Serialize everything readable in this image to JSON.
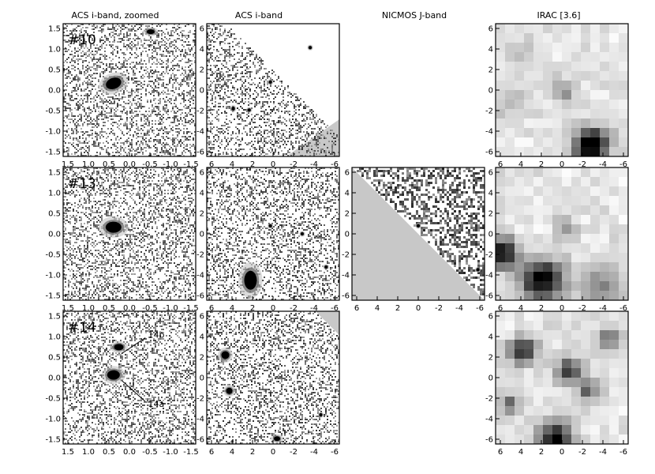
{
  "column_titles": [
    "ACS i-band, zoomed",
    "ACS i-band",
    "NICMOS J-band",
    "IRAC [3.6]"
  ],
  "object_labels": [
    "#10",
    "#13",
    "#14"
  ],
  "annotations": [
    "14b",
    "14a"
  ],
  "zoom_ticks": {
    "x": [
      "1.5",
      "1.0",
      "0.5",
      "0.0",
      "-0.5",
      "-1.0",
      "-1.5"
    ],
    "y": [
      "1.5",
      "1.0",
      "0.5",
      "0.0",
      "-0.5",
      "-1.0",
      "-1.5"
    ]
  },
  "wide_ticks": {
    "x": [
      "6",
      "4",
      "2",
      "0",
      "-2",
      "-4",
      "-6"
    ],
    "y": [
      "6",
      "4",
      "2",
      "0",
      "-2",
      "-4",
      "-6"
    ]
  },
  "panels_present": [
    [
      true,
      true,
      false,
      true
    ],
    [
      true,
      true,
      true,
      true
    ],
    [
      true,
      true,
      false,
      true
    ]
  ],
  "colors": {
    "background": "#ffffff",
    "frame": "#000000",
    "mask": "#c8c8c8",
    "source": "#000000"
  }
}
